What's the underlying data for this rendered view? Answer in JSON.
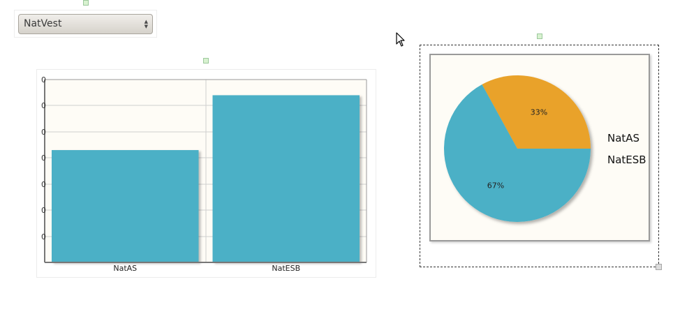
{
  "dropdown": {
    "selected": "NatVest",
    "arrows_icon": "up-down-arrows-icon"
  },
  "colors": {
    "bar_fill": "#4bb0c6",
    "pie_slice_a": "#e9a22b",
    "pie_slice_b": "#4bb0c6",
    "plot_bg": "#fefcf6"
  },
  "chart_data": [
    {
      "type": "bar",
      "categories": [
        "NatAS",
        "NatESB"
      ],
      "values": [
        0.43,
        0.64
      ],
      "ylim": [
        0,
        0.7
      ],
      "ytick_labels": [
        "0",
        "0",
        "0",
        "0",
        "0",
        "0",
        "0"
      ],
      "grid": true
    },
    {
      "type": "pie",
      "labels": [
        "NatAS",
        "NatESB"
      ],
      "values": [
        33,
        67
      ],
      "slice_labels": [
        "33%",
        "67%"
      ],
      "legend": [
        "NatAS",
        "NatESB"
      ],
      "legend_position": "right"
    }
  ]
}
